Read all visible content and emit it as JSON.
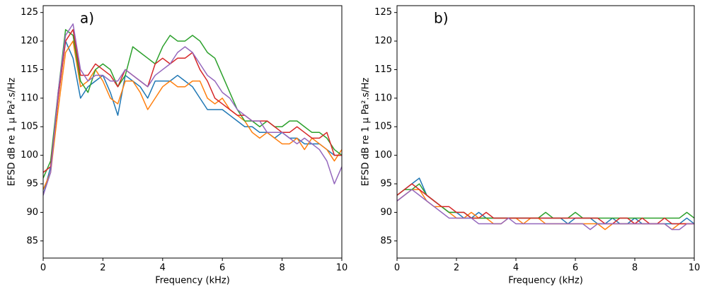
{
  "chart_data": [
    {
      "type": "line",
      "annotation": "a)",
      "xlabel": "Frequency (kHz)",
      "ylabel": "EFSD dB re 1 µ Pa².s/Hz",
      "x": [
        0,
        0.25,
        0.5,
        0.75,
        1,
        1.25,
        1.5,
        1.75,
        2,
        2.25,
        2.5,
        2.75,
        3,
        3.25,
        3.5,
        3.75,
        4,
        4.25,
        4.5,
        4.75,
        5,
        5.25,
        5.5,
        5.75,
        6,
        6.25,
        6.5,
        6.75,
        7,
        7.25,
        7.5,
        7.75,
        8,
        8.25,
        8.5,
        8.75,
        9,
        9.25,
        9.5,
        9.75,
        10
      ],
      "series": [
        {
          "color": "#1f77b4",
          "values": [
            93,
            98,
            110,
            120,
            117,
            110,
            112,
            113,
            114,
            111,
            107,
            114,
            113,
            112,
            110,
            113,
            113,
            113,
            114,
            113,
            112,
            110,
            108,
            108,
            108,
            107,
            106,
            105,
            105,
            104,
            104,
            103,
            104,
            103,
            103,
            102,
            102,
            102,
            101,
            100,
            100
          ]
        },
        {
          "color": "#ff7f0e",
          "values": [
            94,
            97,
            108,
            118,
            120,
            112,
            113,
            115,
            113,
            110,
            109,
            113,
            113,
            111,
            108,
            110,
            112,
            113,
            112,
            112,
            113,
            113,
            110,
            109,
            110,
            108,
            107,
            106,
            104,
            103,
            104,
            103,
            102,
            102,
            103,
            101,
            103,
            102,
            101,
            99,
            101
          ]
        },
        {
          "color": "#2ca02c",
          "values": [
            96,
            99,
            111,
            122,
            121,
            113,
            111,
            115,
            116,
            115,
            112,
            114,
            119,
            118,
            117,
            116,
            119,
            121,
            120,
            120,
            121,
            120,
            118,
            117,
            114,
            111,
            108,
            106,
            106,
            105,
            106,
            105,
            105,
            106,
            106,
            105,
            104,
            104,
            103,
            101,
            100
          ]
        },
        {
          "color": "#d62728",
          "values": [
            97,
            98,
            110,
            120,
            122,
            114,
            114,
            116,
            115,
            114,
            112,
            115,
            114,
            113,
            112,
            116,
            117,
            116,
            117,
            117,
            118,
            115,
            113,
            110,
            109,
            108,
            107,
            107,
            106,
            106,
            106,
            105,
            104,
            104,
            105,
            104,
            103,
            103,
            104,
            100,
            100
          ]
        },
        {
          "color": "#9467bd",
          "values": [
            93,
            97,
            111,
            121,
            123,
            115,
            113,
            114,
            114,
            113,
            113,
            115,
            114,
            113,
            112,
            114,
            115,
            116,
            118,
            119,
            118,
            116,
            114,
            113,
            111,
            110,
            108,
            107,
            106,
            106,
            104,
            104,
            104,
            103,
            102,
            103,
            102,
            101,
            99,
            95,
            98
          ]
        }
      ],
      "xlim": [
        0,
        10
      ],
      "xticks": [
        0,
        2,
        4,
        6,
        8,
        10
      ],
      "ylim": [
        82,
        126.2
      ],
      "yticks": [
        85,
        90,
        95,
        100,
        105,
        110,
        115,
        120,
        125
      ]
    },
    {
      "type": "line",
      "annotation": "b)",
      "xlabel": "Frequency (kHz)",
      "ylabel": "EFSD dB re 1 µ Pa².s/Hz",
      "x": [
        0,
        0.25,
        0.5,
        0.75,
        1,
        1.25,
        1.5,
        1.75,
        2,
        2.25,
        2.5,
        2.75,
        3,
        3.25,
        3.5,
        3.75,
        4,
        4.25,
        4.5,
        4.75,
        5,
        5.25,
        5.5,
        5.75,
        6,
        6.25,
        6.5,
        6.75,
        7,
        7.25,
        7.5,
        7.75,
        8,
        8.25,
        8.5,
        8.75,
        9,
        9.25,
        9.5,
        9.75,
        10
      ],
      "series": [
        {
          "color": "#1f77b4",
          "values": [
            93,
            94,
            95,
            96,
            93,
            92,
            91,
            90,
            90,
            89,
            89,
            90,
            89,
            89,
            89,
            89,
            89,
            89,
            89,
            89,
            89,
            89,
            89,
            88,
            89,
            89,
            89,
            88,
            88,
            89,
            88,
            88,
            89,
            88,
            88,
            88,
            88,
            88,
            88,
            89,
            88
          ]
        },
        {
          "color": "#ff7f0e",
          "values": [
            92,
            93,
            94,
            94,
            92,
            91,
            91,
            90,
            89,
            89,
            90,
            89,
            89,
            88,
            88,
            89,
            89,
            88,
            89,
            89,
            88,
            88,
            88,
            88,
            88,
            88,
            88,
            88,
            87,
            88,
            88,
            88,
            88,
            88,
            88,
            88,
            88,
            87,
            88,
            88,
            88
          ]
        },
        {
          "color": "#2ca02c",
          "values": [
            93,
            94,
            94,
            95,
            93,
            92,
            91,
            90,
            90,
            90,
            89,
            89,
            89,
            89,
            89,
            89,
            89,
            89,
            89,
            89,
            90,
            89,
            89,
            89,
            90,
            89,
            89,
            89,
            89,
            89,
            89,
            89,
            89,
            89,
            89,
            89,
            89,
            89,
            89,
            90,
            89
          ]
        },
        {
          "color": "#d62728",
          "values": [
            93,
            94,
            95,
            94,
            93,
            92,
            91,
            91,
            90,
            90,
            89,
            89,
            90,
            89,
            89,
            89,
            89,
            89,
            89,
            89,
            89,
            89,
            89,
            89,
            89,
            89,
            89,
            89,
            88,
            88,
            89,
            89,
            88,
            89,
            88,
            88,
            89,
            88,
            88,
            88,
            88
          ]
        },
        {
          "color": "#9467bd",
          "values": [
            92,
            93,
            94,
            93,
            92,
            91,
            90,
            89,
            89,
            89,
            89,
            88,
            88,
            88,
            88,
            89,
            88,
            88,
            88,
            88,
            88,
            88,
            88,
            88,
            88,
            88,
            87,
            88,
            88,
            88,
            88,
            88,
            88,
            88,
            88,
            88,
            88,
            87,
            87,
            88,
            88
          ]
        }
      ],
      "xlim": [
        0,
        10
      ],
      "xticks": [
        0,
        2,
        4,
        6,
        8,
        10
      ],
      "ylim": [
        82,
        126.2
      ],
      "yticks": [
        85,
        90,
        95,
        100,
        105,
        110,
        115,
        120,
        125
      ]
    }
  ]
}
